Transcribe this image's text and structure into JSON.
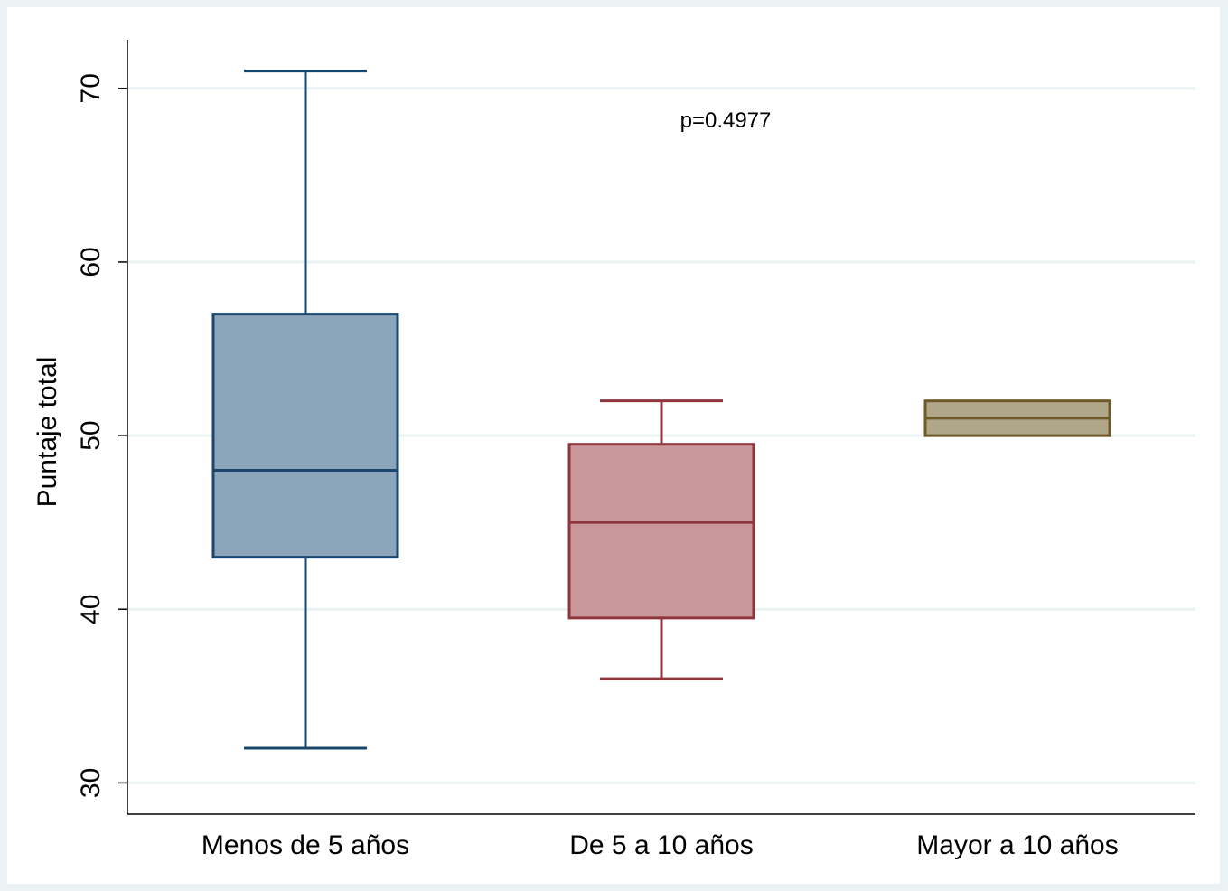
{
  "chart_data": {
    "type": "box",
    "y_label": "Puntaje total",
    "annotation": "p=0.4977",
    "categories": [
      "Menos de 5 años",
      "De 5 a 10 años",
      "Mayor a 10 años"
    ],
    "series": [
      {
        "name": "Menos de 5 años",
        "color": "#8ca5bb",
        "stroke": "#1a476f",
        "min": 32,
        "q1": 43,
        "median": 48,
        "q3": 57,
        "max": 71
      },
      {
        "name": "De 5 a 10 años",
        "color": "#c8989b",
        "stroke": "#90353b",
        "min": 36,
        "q1": 39.5,
        "median": 45,
        "q3": 49.5,
        "max": 52
      },
      {
        "name": "Mayor a 10 años",
        "color": "#b0a68a",
        "stroke": "#6e5a28",
        "min": 50,
        "q1": 50,
        "median": 51,
        "q3": 52,
        "max": 52
      }
    ],
    "ylim": [
      28.2,
      72.8
    ],
    "yticks": [
      30,
      40,
      50,
      60,
      70
    ],
    "grid": true
  }
}
